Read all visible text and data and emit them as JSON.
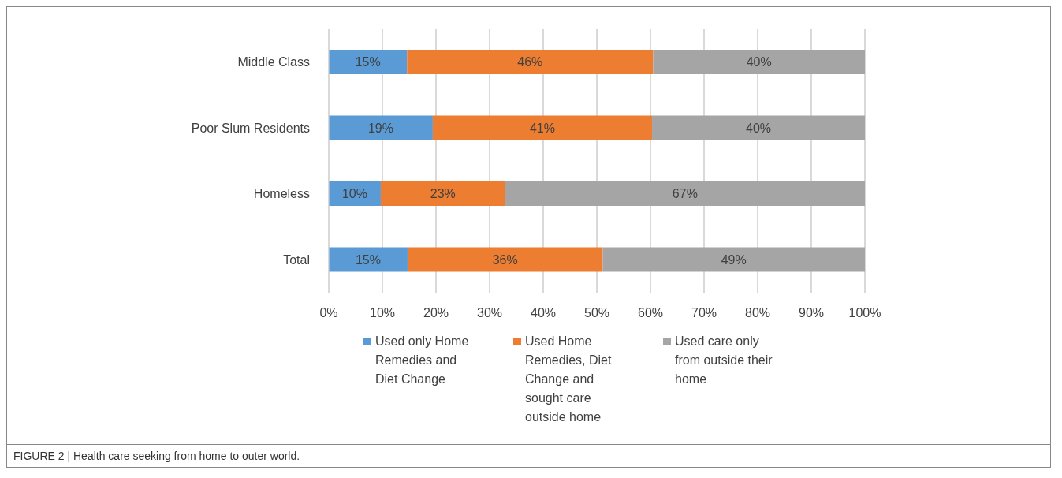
{
  "chart_data": {
    "type": "bar",
    "orientation": "horizontal",
    "stacked": true,
    "categories": [
      "Middle Class",
      "Poor Slum Residents",
      "Homeless",
      "Total"
    ],
    "series": [
      {
        "name": "Used only Home Remedies and Diet Change",
        "color": "#5b9bd5",
        "values": [
          14.6,
          19.4,
          9.7,
          14.7
        ],
        "value_labels": [
          "15%",
          "19%",
          "10%",
          "15%"
        ]
      },
      {
        "name": "Used Home Remedies, Diet Change and sought care outside home",
        "color": "#ed7d31",
        "values": [
          45.9,
          40.9,
          23.2,
          36.4
        ],
        "value_labels": [
          "46%",
          "41%",
          "23%",
          "36%"
        ]
      },
      {
        "name": "Used care only from outside their home",
        "color": "#a5a5a5",
        "values": [
          39.5,
          39.7,
          67.1,
          48.9
        ],
        "value_labels": [
          "40%",
          "40%",
          "67%",
          "49%"
        ]
      }
    ],
    "xlim": [
      0,
      100
    ],
    "xticks": [
      {
        "value": 0,
        "label": "0%"
      },
      {
        "value": 10,
        "label": "10%"
      },
      {
        "value": 20,
        "label": "20%"
      },
      {
        "value": 30,
        "label": "30%"
      },
      {
        "value": 40,
        "label": "40%"
      },
      {
        "value": 50,
        "label": "50%"
      },
      {
        "value": 60,
        "label": "60%"
      },
      {
        "value": 70,
        "label": "70%"
      },
      {
        "value": 80,
        "label": "80%"
      },
      {
        "value": 90,
        "label": "90%"
      },
      {
        "value": 100,
        "label": "100%"
      }
    ],
    "grid": "x",
    "legend": "bottom",
    "annotations": [
      "FIGURE 2 | Health care seeking from home to outer world."
    ]
  }
}
